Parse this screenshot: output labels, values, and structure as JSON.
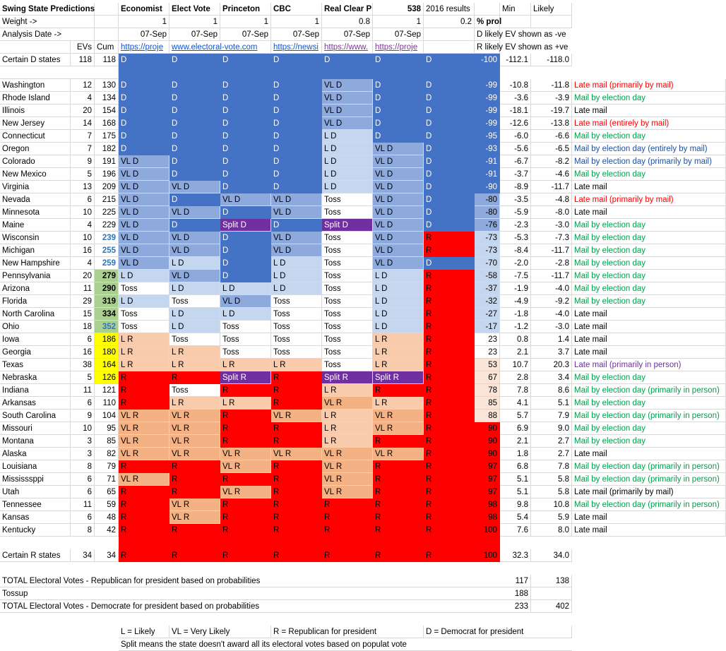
{
  "header": {
    "title": "Swing State Predictions",
    "pollsters": [
      "Economist",
      "Elect Vote",
      "Princeton",
      "CBC",
      "Real Clear P",
      "538",
      "2016 results"
    ],
    "min_label": "Min",
    "likely_label": "Likely",
    "weight_label": "Weight ->",
    "weights": [
      "1",
      "1",
      "1",
      "1",
      "0.8",
      "1",
      "0.2"
    ],
    "pct_prob_label": "% prol",
    "analysis_label": "Analysis Date ->",
    "dates": [
      "07-Sep",
      "07-Sep",
      "07-Sep",
      "07-Sep",
      "07-Sep",
      "07-Sep"
    ],
    "d_note": "D likely EV shown as  -ve",
    "r_note": "R likely EV shown as +ve",
    "evs_label": "EVs",
    "cum_label": "Cum",
    "links": [
      "https://proje",
      "www.electoral-vote.com",
      "",
      "https://newsi",
      "https://www.",
      "https://proje"
    ]
  },
  "certain_d": {
    "label": "Certain D states",
    "evs": "118",
    "cum": "118",
    "calls": [
      "D",
      "D",
      "D",
      "D",
      "D",
      "D",
      "D"
    ],
    "pct": "-100",
    "min": "-112.1",
    "likely": "-118.0"
  },
  "states": [
    {
      "name": "Washington",
      "evs": "12",
      "cum": "130",
      "calls": [
        "D",
        "D",
        "D",
        "D",
        "VL D",
        "D",
        "D"
      ],
      "pct": "-99",
      "min": "-10.8",
      "likely": "-11.8",
      "mail": "Late mail (primarily by mail)",
      "mc": "red"
    },
    {
      "name": "Rhode Island",
      "evs": "4",
      "cum": "134",
      "calls": [
        "D",
        "D",
        "D",
        "D",
        "VL D",
        "D",
        "D"
      ],
      "pct": "-99",
      "min": "-3.6",
      "likely": "-3.9",
      "mail": "Mail by election day",
      "mc": "green"
    },
    {
      "name": "Illinois",
      "evs": "20",
      "cum": "154",
      "calls": [
        "D",
        "D",
        "D",
        "D",
        "VL D",
        "D",
        "D"
      ],
      "pct": "-99",
      "min": "-18.1",
      "likely": "-19.7",
      "mail": "Late mail",
      "mc": "black"
    },
    {
      "name": "New Jersey",
      "evs": "14",
      "cum": "168",
      "calls": [
        "D",
        "D",
        "D",
        "D",
        "VL D",
        "D",
        "D"
      ],
      "pct": "-99",
      "min": "-12.6",
      "likely": "-13.8",
      "mail": "Late mail (entirely by mail)",
      "mc": "red"
    },
    {
      "name": "Connecticut",
      "evs": "7",
      "cum": "175",
      "calls": [
        "D",
        "D",
        "D",
        "D",
        "L D",
        "D",
        "D"
      ],
      "pct": "-95",
      "min": "-6.0",
      "likely": "-6.6",
      "mail": "Mail by election day",
      "mc": "green"
    },
    {
      "name": "Oregon",
      "evs": "7",
      "cum": "182",
      "calls": [
        "D",
        "D",
        "D",
        "D",
        "L D",
        "VL D",
        "D"
      ],
      "pct": "-93",
      "min": "-5.6",
      "likely": "-6.5",
      "mail": "Mail by election day (entirely by mail)",
      "mc": "navy"
    },
    {
      "name": "Colorado",
      "evs": "9",
      "cum": "191",
      "calls": [
        "VL D",
        "D",
        "D",
        "D",
        "L D",
        "VL D",
        "D"
      ],
      "pct": "-91",
      "min": "-6.7",
      "likely": "-8.2",
      "mail": "Mail by election day (primarily by mail)",
      "mc": "navy"
    },
    {
      "name": "New Mexico",
      "evs": "5",
      "cum": "196",
      "calls": [
        "VL D",
        "D",
        "D",
        "D",
        "L D",
        "VL D",
        "D"
      ],
      "pct": "-91",
      "min": "-3.7",
      "likely": "-4.6",
      "mail": "Mail by election day",
      "mc": "green"
    },
    {
      "name": "Virginia",
      "evs": "13",
      "cum": "209",
      "calls": [
        "VL D",
        "VL D",
        "D",
        "D",
        "L D",
        "VL D",
        "D"
      ],
      "pct": "-90",
      "min": "-8.9",
      "likely": "-11.7",
      "mail": "Late mail",
      "mc": "black"
    },
    {
      "name": "Nevada",
      "evs": "6",
      "cum": "215",
      "calls": [
        "VL D",
        "D",
        "VL D",
        "VL D",
        "Toss",
        "VL D",
        "D"
      ],
      "pct": "-80",
      "min": "-3.5",
      "likely": "-4.8",
      "mail": "Late mail (primarily by mail)",
      "mc": "red"
    },
    {
      "name": "Minnesota",
      "evs": "10",
      "cum": "225",
      "calls": [
        "VL D",
        "VL D",
        "D",
        "VL D",
        "Toss",
        "VL D",
        "D"
      ],
      "pct": "-80",
      "min": "-5.9",
      "likely": "-8.0",
      "mail": "Late mail",
      "mc": "black"
    },
    {
      "name": "Maine",
      "evs": "4",
      "cum": "229",
      "calls": [
        "VL D",
        "D",
        "Split D",
        "D",
        "Split D",
        "VL D",
        "D"
      ],
      "pct": "-76",
      "min": "-2.3",
      "likely": "-3.0",
      "mail": "Mail by election day",
      "mc": "green"
    },
    {
      "name": "Wisconsin",
      "evs": "10",
      "cum": "239",
      "calls": [
        "VL D",
        "VL D",
        "D",
        "VL D",
        "Toss",
        "VL D",
        "R"
      ],
      "pct": "-73",
      "min": "-5.3",
      "likely": "-7.3",
      "mail": "Mail by election day",
      "mc": "green"
    },
    {
      "name": "Michigan",
      "evs": "16",
      "cum": "255",
      "calls": [
        "VL D",
        "VL D",
        "D",
        "VL D",
        "Toss",
        "VL D",
        "R"
      ],
      "pct": "-73",
      "min": "-8.4",
      "likely": "-11.7",
      "mail": "Mail by election day",
      "mc": "green"
    },
    {
      "name": "New Hampshire",
      "evs": "4",
      "cum": "259",
      "calls": [
        "VL D",
        "L D",
        "D",
        "L D",
        "Toss",
        "VL D",
        "D"
      ],
      "pct": "-70",
      "min": "-2.0",
      "likely": "-2.8",
      "mail": "Mail by election day",
      "mc": "green"
    },
    {
      "name": "Pennsylvania",
      "evs": "20",
      "cum": "279",
      "calls": [
        "L D",
        "VL D",
        "D",
        "L D",
        "Toss",
        "L D",
        "R"
      ],
      "pct": "-58",
      "min": "-7.5",
      "likely": "-11.7",
      "mail": "Mail by election day",
      "mc": "green"
    },
    {
      "name": "Arizona",
      "evs": "11",
      "cum": "290",
      "calls": [
        "Toss",
        "L D",
        "L D",
        "L D",
        "Toss",
        "L D",
        "R"
      ],
      "pct": "-37",
      "min": "-1.9",
      "likely": "-4.0",
      "mail": "Mail by election day",
      "mc": "green"
    },
    {
      "name": "Florida",
      "evs": "29",
      "cum": "319",
      "calls": [
        "L D",
        "Toss",
        "VL D",
        "Toss",
        "Toss",
        "L D",
        "R"
      ],
      "pct": "-32",
      "min": "-4.9",
      "likely": "-9.2",
      "mail": "Mail by election day",
      "mc": "green"
    },
    {
      "name": "North Carolina",
      "evs": "15",
      "cum": "334",
      "calls": [
        "Toss",
        "L D",
        "L D",
        "Toss",
        "Toss",
        "L D",
        "R"
      ],
      "pct": "-27",
      "min": "-1.8",
      "likely": "-4.0",
      "mail": "Late mail",
      "mc": "black"
    },
    {
      "name": "Ohio",
      "evs": "18",
      "cum": "352",
      "calls": [
        "Toss",
        "L D",
        "Toss",
        "Toss",
        "Toss",
        "L D",
        "R"
      ],
      "pct": "-17",
      "min": "-1.2",
      "likely": "-3.0",
      "mail": "Late mail",
      "mc": "black"
    },
    {
      "name": "Iowa",
      "evs": "6",
      "cum": "186",
      "calls": [
        "L R",
        "Toss",
        "Toss",
        "Toss",
        "Toss",
        "L R",
        "R"
      ],
      "pct": "23",
      "min": "0.8",
      "likely": "1.4",
      "mail": "Late mail",
      "mc": "black"
    },
    {
      "name": "Georgia",
      "evs": "16",
      "cum": "180",
      "calls": [
        "L R",
        "L R",
        "Toss",
        "Toss",
        "Toss",
        "L R",
        "R"
      ],
      "pct": "23",
      "min": "2.1",
      "likely": "3.7",
      "mail": "Late mail",
      "mc": "black"
    },
    {
      "name": "Texas",
      "evs": "38",
      "cum": "164",
      "calls": [
        "L R",
        "L R",
        "L R",
        "L R",
        "Toss",
        "L R",
        "R"
      ],
      "pct": "53",
      "min": "10.7",
      "likely": "20.3",
      "mail": "Late mail (primarily in person)",
      "mc": "purple"
    },
    {
      "name": "Nebraska",
      "evs": "5",
      "cum": "126",
      "calls": [
        "R",
        "R",
        "Split R",
        "R",
        "Split R",
        "Split R",
        "R"
      ],
      "pct": "67",
      "min": "2.8",
      "likely": "3.4",
      "mail": "Mail by election day",
      "mc": "green"
    },
    {
      "name": "Indiana",
      "evs": "11",
      "cum": "121",
      "calls": [
        "R",
        "Toss",
        "R",
        "R",
        "L R",
        "R",
        "R"
      ],
      "pct": "78",
      "min": "7.8",
      "likely": "8.6",
      "mail": "Mail by election day (primarily in person)",
      "mc": "green"
    },
    {
      "name": "Arkansas",
      "evs": "6",
      "cum": "110",
      "calls": [
        "R",
        "L R",
        "L R",
        "R",
        "VL R",
        "L R",
        "R"
      ],
      "pct": "85",
      "min": "4.1",
      "likely": "5.1",
      "mail": "Mail by election day",
      "mc": "green"
    },
    {
      "name": "South Carolina",
      "evs": "9",
      "cum": "104",
      "calls": [
        "VL R",
        "VL R",
        "R",
        "VL R",
        "L R",
        "VL R",
        "R"
      ],
      "pct": "88",
      "min": "5.7",
      "likely": "7.9",
      "mail": "Mail by election day (primarily in person)",
      "mc": "green"
    },
    {
      "name": "Missouri",
      "evs": "10",
      "cum": "95",
      "calls": [
        "VL R",
        "VL R",
        "R",
        "R",
        "L R",
        "VL R",
        "R"
      ],
      "pct": "90",
      "min": "6.9",
      "likely": "9.0",
      "mail": "Mail by election day",
      "mc": "green"
    },
    {
      "name": "Montana",
      "evs": "3",
      "cum": "85",
      "calls": [
        "VL R",
        "VL R",
        "R",
        "R",
        "L R",
        "R",
        "R"
      ],
      "pct": "90",
      "min": "2.1",
      "likely": "2.7",
      "mail": "Mail by election day",
      "mc": "green"
    },
    {
      "name": "Alaska",
      "evs": "3",
      "cum": "82",
      "calls": [
        "VL R",
        "VL R",
        "VL R",
        "VL R",
        "VL R",
        "VL R",
        "R"
      ],
      "pct": "90",
      "min": "1.8",
      "likely": "2.7",
      "mail": "Late mail",
      "mc": "black"
    },
    {
      "name": "Louisiana",
      "evs": "8",
      "cum": "79",
      "calls": [
        "R",
        "R",
        "VL R",
        "R",
        "VL R",
        "R",
        "R"
      ],
      "pct": "97",
      "min": "6.8",
      "likely": "7.8",
      "mail": "Mail by election day (primarily in person)",
      "mc": "green"
    },
    {
      "name": "Mississsppi",
      "evs": "6",
      "cum": "71",
      "calls": [
        "VL R",
        "R",
        "R",
        "R",
        "VL R",
        "R",
        "R"
      ],
      "pct": "97",
      "min": "5.1",
      "likely": "5.8",
      "mail": "Mail by election day (primarily in person)",
      "mc": "green"
    },
    {
      "name": "Utah",
      "evs": "6",
      "cum": "65",
      "calls": [
        "R",
        "R",
        "VL R",
        "R",
        "VL R",
        "R",
        "R"
      ],
      "pct": "97",
      "min": "5.1",
      "likely": "5.8",
      "mail": "Late mail (primarily by mail)",
      "mc": "black"
    },
    {
      "name": "Tennessee",
      "evs": "11",
      "cum": "59",
      "calls": [
        "R",
        "VL R",
        "R",
        "R",
        "R",
        "R",
        "R"
      ],
      "pct": "98",
      "min": "9.8",
      "likely": "10.8",
      "mail": "Mail by election day (primarily in person)",
      "mc": "green"
    },
    {
      "name": "Kansas",
      "evs": "6",
      "cum": "48",
      "calls": [
        "R",
        "VL R",
        "R",
        "R",
        "R",
        "R",
        "R"
      ],
      "pct": "98",
      "min": "5.4",
      "likely": "5.9",
      "mail": "Late mail",
      "mc": "black"
    },
    {
      "name": "Kentucky",
      "evs": "8",
      "cum": "42",
      "calls": [
        "R",
        "R",
        "R",
        "R",
        "R",
        "R",
        "R"
      ],
      "pct": "100",
      "min": "7.6",
      "likely": "8.0",
      "mail": "Late mail",
      "mc": "black"
    }
  ],
  "certain_r": {
    "label": "Certain R states",
    "evs": "34",
    "cum": "34",
    "calls": [
      "R",
      "R",
      "R",
      "R",
      "R",
      "R",
      "R"
    ],
    "pct": "100",
    "min": "32.3",
    "likely": "34.0"
  },
  "totals": {
    "rep_label": "TOTAL Electoral Votes - Republican for president  based on probabilities",
    "rep_min": "117",
    "rep_likely": "138",
    "toss_label": "Tossup",
    "toss_min": "188",
    "dem_label": "TOTAL Electoral Votes - Democrate for president based on probabilities",
    "dem_min": "233",
    "dem_likely": "402"
  },
  "legend": {
    "l": "L = Likely",
    "vl": "VL = Very Likely",
    "r": "R = Republican for president",
    "d": "D = Democrat for president",
    "split": "Split means the state doesn't award all its electoral votes based on populat vote"
  }
}
